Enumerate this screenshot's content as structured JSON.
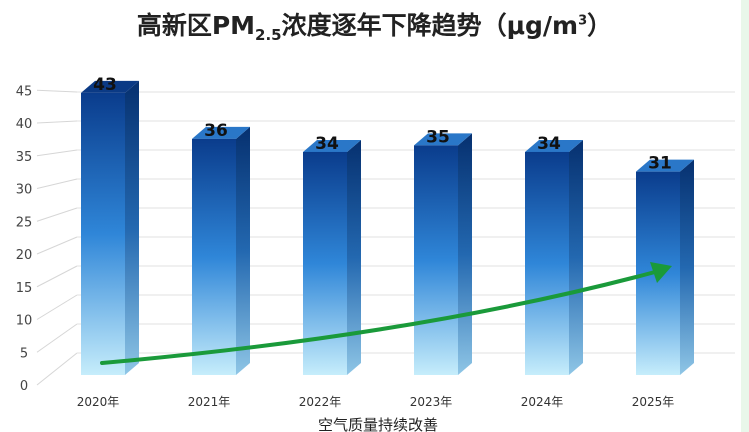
{
  "chart_data": {
    "type": "bar",
    "title_prefix": "高新区PM",
    "title_sub": "2.5",
    "title_suffix": "浓度逐年下降趋势（μg/m",
    "title_sup": "3",
    "title_end": "）",
    "categories": [
      "2020年",
      "2021年",
      "2022年",
      "2023年",
      "2024年",
      "2025年"
    ],
    "values": [
      43,
      36,
      34,
      35,
      34,
      31
    ],
    "xlabel": "空气质量持续改善",
    "ylabel": "",
    "ylim": [
      0,
      45
    ],
    "yticks": [
      0,
      5,
      10,
      15,
      20,
      25,
      30,
      35,
      40,
      45
    ],
    "grid": true,
    "annotation": "green upward trend arrow",
    "colors": {
      "bar_top": "#0a3c8c",
      "bar_bottom": "#bfe9fb",
      "arrow": "#1a9a3a"
    }
  }
}
